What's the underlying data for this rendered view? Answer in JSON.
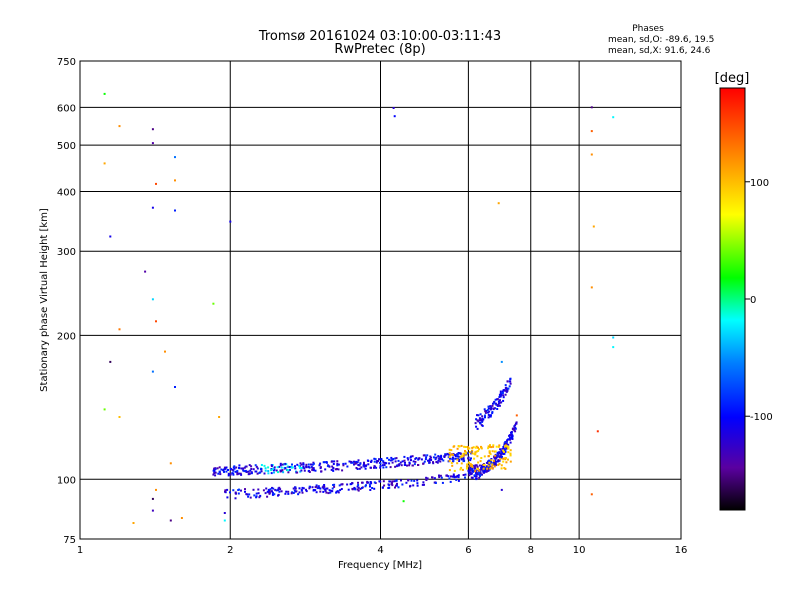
{
  "chart_data": {
    "type": "scatter",
    "title": "Tromsø 20161024 03:10:00-03:11:43",
    "subtitle": "RwPretec (8p)",
    "xlabel": "Frequency [MHz]",
    "ylabel": "Stationary phase Virtual Height [km]",
    "x_scale": "log",
    "y_scale": "log",
    "xlim": [
      1,
      16
    ],
    "ylim": [
      75,
      750
    ],
    "x_ticks": [
      1,
      2,
      4,
      6,
      8,
      10,
      16
    ],
    "y_ticks": [
      75,
      100,
      200,
      300,
      400,
      500,
      600,
      750
    ],
    "grid": true,
    "stats": {
      "heading": "Phases",
      "line_o": "mean, sd,O: -89.6, 19.5",
      "line_x": "mean, sd,X:  91.6, 24.6"
    },
    "colorbar": {
      "label": "[deg]",
      "range": [
        -180,
        180
      ],
      "ticks": [
        -100,
        0,
        100
      ],
      "colormap": "rainbow"
    },
    "sample_points": [
      {
        "f": 1.12,
        "h": 640,
        "phase": 20
      },
      {
        "f": 1.2,
        "h": 548,
        "phase": 120
      },
      {
        "f": 1.12,
        "h": 458,
        "phase": 110
      },
      {
        "f": 1.4,
        "h": 540,
        "phase": -150
      },
      {
        "f": 1.4,
        "h": 505,
        "phase": -140
      },
      {
        "f": 1.42,
        "h": 415,
        "phase": 150
      },
      {
        "f": 1.4,
        "h": 370,
        "phase": -110
      },
      {
        "f": 1.55,
        "h": 472,
        "phase": -60
      },
      {
        "f": 1.55,
        "h": 422,
        "phase": 120
      },
      {
        "f": 1.55,
        "h": 365,
        "phase": -90
      },
      {
        "f": 1.15,
        "h": 322,
        "phase": -110
      },
      {
        "f": 1.35,
        "h": 272,
        "phase": -140
      },
      {
        "f": 1.4,
        "h": 238,
        "phase": -30
      },
      {
        "f": 1.42,
        "h": 214,
        "phase": 150
      },
      {
        "f": 1.85,
        "h": 233,
        "phase": 40
      },
      {
        "f": 1.2,
        "h": 206,
        "phase": 130
      },
      {
        "f": 1.48,
        "h": 185,
        "phase": 120
      },
      {
        "f": 1.15,
        "h": 176,
        "phase": -160
      },
      {
        "f": 1.4,
        "h": 168,
        "phase": -60
      },
      {
        "f": 1.55,
        "h": 156,
        "phase": -90
      },
      {
        "f": 1.12,
        "h": 140,
        "phase": 40
      },
      {
        "f": 1.2,
        "h": 135,
        "phase": 100
      },
      {
        "f": 1.9,
        "h": 135,
        "phase": 110
      },
      {
        "f": 2.0,
        "h": 346,
        "phase": -110
      },
      {
        "f": 4.25,
        "h": 598,
        "phase": -120
      },
      {
        "f": 4.27,
        "h": 575,
        "phase": -100
      },
      {
        "f": 6.9,
        "h": 378,
        "phase": 110
      },
      {
        "f": 10.6,
        "h": 600,
        "phase": -150
      },
      {
        "f": 10.6,
        "h": 535,
        "phase": 140
      },
      {
        "f": 10.6,
        "h": 478,
        "phase": 120
      },
      {
        "f": 10.7,
        "h": 338,
        "phase": 110
      },
      {
        "f": 10.6,
        "h": 252,
        "phase": 120
      },
      {
        "f": 11.7,
        "h": 572,
        "phase": -20
      },
      {
        "f": 11.7,
        "h": 198,
        "phase": -30
      },
      {
        "f": 11.7,
        "h": 189,
        "phase": -20
      },
      {
        "f": 10.9,
        "h": 126,
        "phase": 160
      },
      {
        "f": 10.6,
        "h": 93,
        "phase": 140
      },
      {
        "f": 1.42,
        "h": 95,
        "phase": 120
      },
      {
        "f": 1.4,
        "h": 91,
        "phase": -160
      },
      {
        "f": 1.4,
        "h": 86,
        "phase": -130
      },
      {
        "f": 1.52,
        "h": 82,
        "phase": -150
      },
      {
        "f": 1.6,
        "h": 83,
        "phase": 120
      },
      {
        "f": 1.28,
        "h": 81,
        "phase": 110
      },
      {
        "f": 1.95,
        "h": 85,
        "phase": -120
      },
      {
        "f": 1.95,
        "h": 82,
        "phase": -20
      },
      {
        "f": 1.52,
        "h": 108,
        "phase": 120
      },
      {
        "f": 4.45,
        "h": 90,
        "phase": 20
      },
      {
        "f": 7.0,
        "h": 95,
        "phase": -120
      },
      {
        "f": 7.5,
        "h": 136,
        "phase": 140
      },
      {
        "f": 7.0,
        "h": 176,
        "phase": -50
      }
    ]
  }
}
